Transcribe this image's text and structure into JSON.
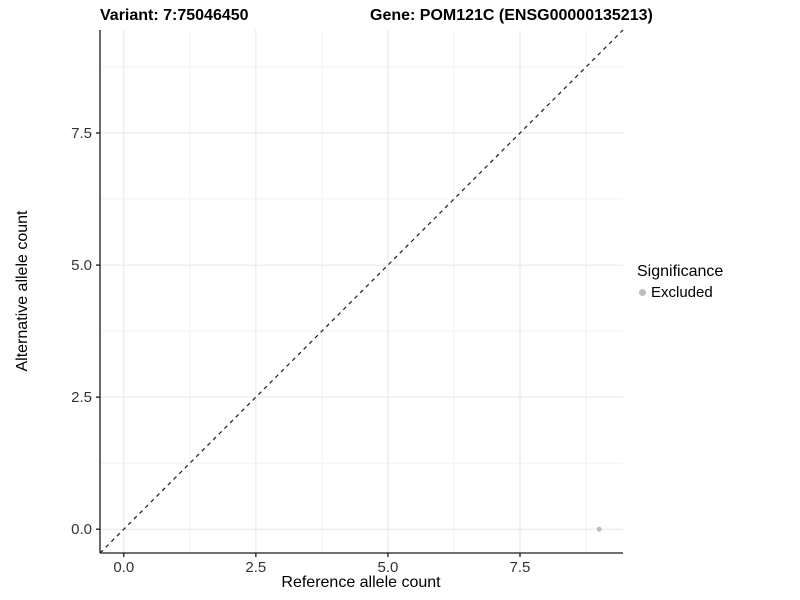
{
  "chart_data": {
    "type": "scatter",
    "title_left": "Variant: 7:75046450",
    "title_right": "Gene: POM121C (ENSG00000135213)",
    "xlabel": "Reference allele count",
    "ylabel": "Alternative allele count",
    "xlim": [
      -0.45,
      9.45
    ],
    "ylim": [
      -0.45,
      9.45
    ],
    "x_ticks": [
      0.0,
      2.5,
      5.0,
      7.5
    ],
    "x_tick_labels": [
      "0.0",
      "2.5",
      "5.0",
      "7.5"
    ],
    "y_ticks": [
      0.0,
      2.5,
      5.0,
      7.5
    ],
    "y_tick_labels": [
      "0.0",
      "2.5",
      "5.0",
      "7.5"
    ],
    "minor_x_ticks": [
      1.25,
      3.75,
      6.25,
      8.75
    ],
    "minor_y_ticks": [
      1.25,
      3.75,
      6.25,
      8.75
    ],
    "grid": true,
    "series": [
      {
        "name": "Excluded",
        "color": "#bdbdbd",
        "point_radius": 2.5,
        "points": [
          [
            9,
            0
          ]
        ]
      }
    ],
    "identity_line": {
      "style": "dashed",
      "color": "#1a1a1a",
      "from": [
        -0.45,
        -0.45
      ],
      "to": [
        9.45,
        9.45
      ]
    },
    "legend": {
      "title": "Significance",
      "position": "right",
      "entries": [
        {
          "label": "Excluded",
          "color": "#bdbdbd"
        }
      ]
    },
    "colors": {
      "background": "#ffffff",
      "axis_line": "#1a1a1a",
      "tick_label": "#333333",
      "grid_major": "#e6e6e6",
      "grid_minor": "#f2f2f2"
    }
  }
}
